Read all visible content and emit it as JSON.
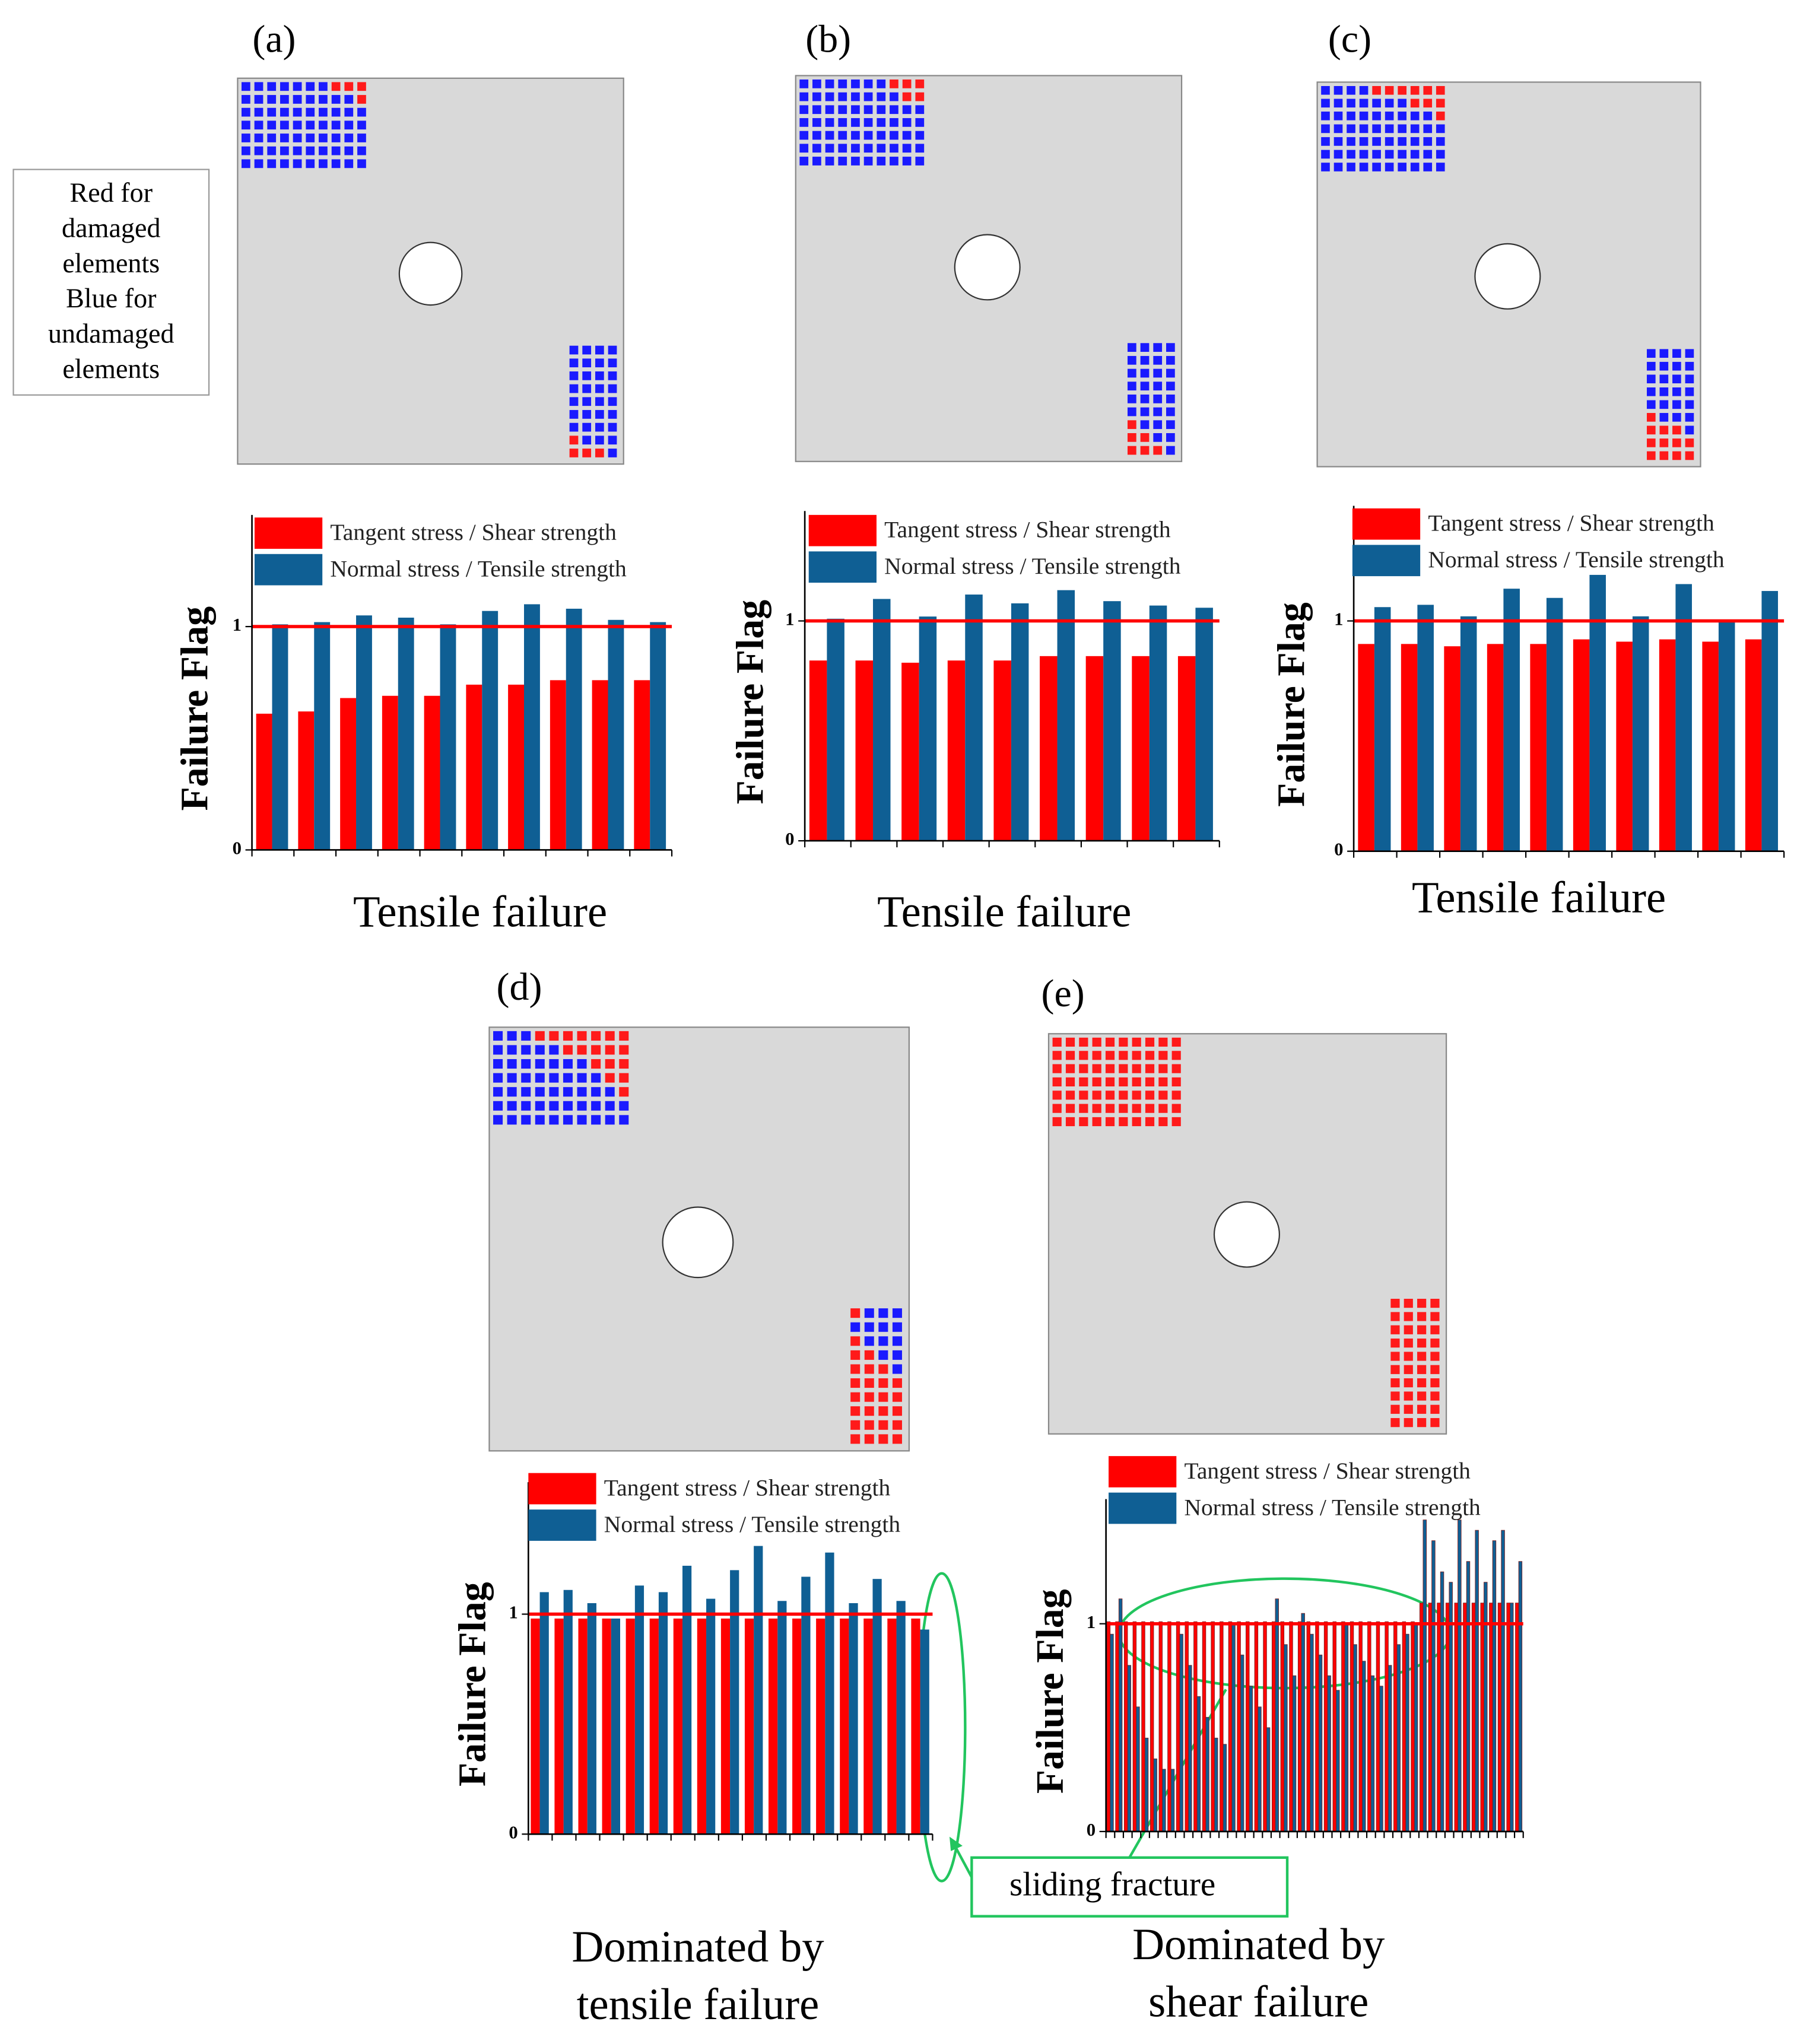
{
  "legend_note": {
    "lines": [
      "Red for",
      "damaged",
      "elements",
      "Blue for",
      "undamaged",
      "elements"
    ]
  },
  "annotation": {
    "text": "sliding fracture"
  },
  "panels": [
    {
      "label": "(a)",
      "caption": [
        "Tensile failure"
      ],
      "mesh": {
        "top": [
          [
            0,
            0,
            0,
            0,
            0,
            0,
            0,
            1,
            1,
            1
          ],
          [
            0,
            0,
            0,
            0,
            0,
            0,
            0,
            0,
            0,
            1
          ],
          [
            0,
            0,
            0,
            0,
            0,
            0,
            0,
            0,
            0,
            0
          ],
          [
            0,
            0,
            0,
            0,
            0,
            0,
            0,
            0,
            0,
            0
          ],
          [
            0,
            0,
            0,
            0,
            0,
            0,
            0,
            0,
            0,
            0
          ],
          [
            0,
            0,
            0,
            0,
            0,
            0,
            0,
            0,
            0,
            0
          ],
          [
            0,
            0,
            0,
            0,
            0,
            0,
            0,
            0,
            0,
            0
          ]
        ],
        "bottom": [
          [
            0,
            0,
            0,
            0
          ],
          [
            0,
            0,
            0,
            0
          ],
          [
            0,
            0,
            0,
            0
          ],
          [
            0,
            0,
            0,
            0
          ],
          [
            0,
            0,
            0,
            0
          ],
          [
            0,
            0,
            0,
            0
          ],
          [
            0,
            0,
            0,
            0
          ],
          [
            1,
            0,
            0,
            0
          ],
          [
            1,
            1,
            1,
            0
          ]
        ]
      }
    },
    {
      "label": "(b)",
      "caption": [
        "Tensile failure"
      ],
      "mesh": {
        "top": [
          [
            0,
            0,
            0,
            0,
            0,
            0,
            0,
            1,
            1,
            1
          ],
          [
            0,
            0,
            0,
            0,
            0,
            0,
            0,
            0,
            1,
            1
          ],
          [
            0,
            0,
            0,
            0,
            0,
            0,
            0,
            0,
            0,
            0
          ],
          [
            0,
            0,
            0,
            0,
            0,
            0,
            0,
            0,
            0,
            0
          ],
          [
            0,
            0,
            0,
            0,
            0,
            0,
            0,
            0,
            0,
            0
          ],
          [
            0,
            0,
            0,
            0,
            0,
            0,
            0,
            0,
            0,
            0
          ],
          [
            0,
            0,
            0,
            0,
            0,
            0,
            0,
            0,
            0,
            0
          ]
        ],
        "bottom": [
          [
            0,
            0,
            0,
            0
          ],
          [
            0,
            0,
            0,
            0
          ],
          [
            0,
            0,
            0,
            0
          ],
          [
            0,
            0,
            0,
            0
          ],
          [
            0,
            0,
            0,
            0
          ],
          [
            0,
            0,
            0,
            0
          ],
          [
            1,
            0,
            0,
            0
          ],
          [
            1,
            1,
            0,
            0
          ],
          [
            1,
            1,
            1,
            0
          ]
        ]
      }
    },
    {
      "label": "(c)",
      "caption": [
        "Tensile failure"
      ],
      "mesh": {
        "top": [
          [
            0,
            0,
            0,
            0,
            1,
            1,
            1,
            1,
            1,
            1
          ],
          [
            0,
            0,
            0,
            0,
            0,
            0,
            0,
            1,
            1,
            1
          ],
          [
            0,
            0,
            0,
            0,
            0,
            0,
            0,
            0,
            0,
            1
          ],
          [
            0,
            0,
            0,
            0,
            0,
            0,
            0,
            0,
            0,
            0
          ],
          [
            0,
            0,
            0,
            0,
            0,
            0,
            0,
            0,
            0,
            0
          ],
          [
            0,
            0,
            0,
            0,
            0,
            0,
            0,
            0,
            0,
            0
          ],
          [
            0,
            0,
            0,
            0,
            0,
            0,
            0,
            0,
            0,
            0
          ]
        ],
        "bottom": [
          [
            0,
            0,
            0,
            0
          ],
          [
            0,
            0,
            0,
            0
          ],
          [
            0,
            0,
            0,
            0
          ],
          [
            0,
            0,
            0,
            0
          ],
          [
            0,
            0,
            0,
            0
          ],
          [
            1,
            0,
            0,
            0
          ],
          [
            1,
            1,
            1,
            0
          ],
          [
            1,
            1,
            1,
            1
          ],
          [
            1,
            1,
            1,
            1
          ]
        ]
      }
    },
    {
      "label": "(d)",
      "caption": [
        "Dominated by",
        "tensile failure"
      ],
      "mesh": {
        "top": [
          [
            0,
            0,
            0,
            1,
            1,
            1,
            1,
            1,
            1,
            1
          ],
          [
            0,
            0,
            0,
            0,
            0,
            1,
            1,
            1,
            1,
            1
          ],
          [
            0,
            0,
            0,
            0,
            0,
            0,
            0,
            1,
            1,
            1
          ],
          [
            0,
            0,
            0,
            0,
            0,
            0,
            0,
            0,
            1,
            1
          ],
          [
            0,
            0,
            0,
            0,
            0,
            0,
            0,
            0,
            0,
            1
          ],
          [
            0,
            0,
            0,
            0,
            0,
            0,
            0,
            0,
            0,
            0
          ],
          [
            0,
            0,
            0,
            0,
            0,
            0,
            0,
            0,
            0,
            0
          ]
        ],
        "bottom": [
          [
            1,
            0,
            0,
            0
          ],
          [
            0,
            0,
            0,
            0
          ],
          [
            1,
            0,
            0,
            0
          ],
          [
            1,
            1,
            0,
            0
          ],
          [
            1,
            1,
            1,
            0
          ],
          [
            1,
            1,
            1,
            1
          ],
          [
            1,
            1,
            1,
            1
          ],
          [
            1,
            1,
            1,
            1
          ],
          [
            1,
            1,
            1,
            1
          ],
          [
            1,
            1,
            1,
            1
          ]
        ]
      }
    },
    {
      "label": "(e)",
      "caption": [
        "Dominated by",
        "shear failure"
      ],
      "mesh": {
        "top": [
          [
            1,
            1,
            1,
            1,
            1,
            1,
            1,
            1,
            1,
            1
          ],
          [
            1,
            1,
            1,
            1,
            1,
            1,
            1,
            1,
            1,
            1
          ],
          [
            1,
            1,
            1,
            1,
            1,
            1,
            1,
            1,
            1,
            1
          ],
          [
            1,
            1,
            1,
            1,
            1,
            1,
            1,
            1,
            1,
            1
          ],
          [
            1,
            1,
            1,
            1,
            1,
            1,
            1,
            1,
            1,
            1
          ],
          [
            1,
            1,
            1,
            1,
            1,
            1,
            1,
            1,
            1,
            1
          ],
          [
            1,
            1,
            1,
            1,
            1,
            1,
            1,
            1,
            1,
            1
          ]
        ],
        "bottom": [
          [
            1,
            1,
            1,
            1
          ],
          [
            1,
            1,
            1,
            1
          ],
          [
            1,
            1,
            1,
            1
          ],
          [
            1,
            1,
            1,
            1
          ],
          [
            1,
            1,
            1,
            1
          ],
          [
            1,
            1,
            1,
            1
          ],
          [
            1,
            1,
            1,
            1
          ],
          [
            1,
            1,
            1,
            1
          ],
          [
            1,
            1,
            1,
            1
          ],
          [
            1,
            1,
            1,
            1
          ]
        ]
      }
    }
  ],
  "chart_data": [
    {
      "type": "bar",
      "ylabel": "Failure Flag",
      "ylim": [
        0,
        1.5
      ],
      "yticks": [
        0,
        1
      ],
      "hline": 1,
      "hline_color": "#ff0000",
      "categories": [
        null,
        null,
        null,
        null,
        null,
        null,
        null,
        null,
        null,
        null
      ],
      "series": [
        {
          "name": "Tangent stress / Shear strength",
          "color": "#ff0000",
          "values": [
            0.61,
            0.62,
            0.68,
            0.69,
            0.69,
            0.74,
            0.74,
            0.76,
            0.76,
            0.76
          ]
        },
        {
          "name": "Normal stress / Tensile strength",
          "color": "#0f5f94",
          "values": [
            1.01,
            1.02,
            1.05,
            1.04,
            1.01,
            1.07,
            1.1,
            1.08,
            1.03,
            1.02
          ]
        }
      ]
    },
    {
      "type": "bar",
      "ylabel": "Failure Flag",
      "ylim": [
        0,
        1.5
      ],
      "yticks": [
        0,
        1
      ],
      "hline": 1,
      "hline_color": "#ff0000",
      "categories": [
        null,
        null,
        null,
        null,
        null,
        null,
        null,
        null,
        null
      ],
      "series": [
        {
          "name": "Tangent stress / Shear strength",
          "color": "#ff0000",
          "values": [
            0.82,
            0.82,
            0.81,
            0.82,
            0.82,
            0.84,
            0.84,
            0.84,
            0.84
          ]
        },
        {
          "name": "Normal stress / Tensile strength",
          "color": "#0f5f94",
          "values": [
            1.01,
            1.1,
            1.02,
            1.12,
            1.08,
            1.14,
            1.09,
            1.07,
            1.06
          ]
        }
      ]
    },
    {
      "type": "bar",
      "ylabel": "Failure Flag",
      "ylim": [
        0,
        1.5
      ],
      "yticks": [
        0,
        1
      ],
      "hline": 1,
      "hline_color": "#ff0000",
      "categories": [
        null,
        null,
        null,
        null,
        null,
        null,
        null,
        null,
        null,
        null
      ],
      "series": [
        {
          "name": "Tangent stress / Shear strength",
          "color": "#ff0000",
          "values": [
            0.9,
            0.9,
            0.89,
            0.9,
            0.9,
            0.92,
            0.91,
            0.92,
            0.91,
            0.92
          ]
        },
        {
          "name": "Normal stress / Tensile strength",
          "color": "#0f5f94",
          "values": [
            1.06,
            1.07,
            1.02,
            1.14,
            1.1,
            1.2,
            1.02,
            1.16,
            1.0,
            1.13
          ]
        }
      ]
    },
    {
      "type": "bar",
      "ylabel": "Failure Flag",
      "ylim": [
        0,
        1.6
      ],
      "yticks": [
        0,
        1
      ],
      "hline": 1,
      "hline_color": "#ff0000",
      "categories": [
        null,
        null,
        null,
        null,
        null,
        null,
        null,
        null,
        null,
        null,
        null,
        null,
        null,
        null,
        null,
        null,
        null
      ],
      "series": [
        {
          "name": "Tangent stress / Shear strength",
          "color": "#ff0000",
          "values": [
            0.98,
            0.98,
            0.98,
            0.98,
            0.98,
            0.98,
            0.98,
            0.98,
            0.98,
            0.98,
            0.98,
            0.98,
            0.98,
            0.98,
            0.98,
            0.98,
            0.98
          ]
        },
        {
          "name": "Normal stress / Tensile strength",
          "color": "#0f5f94",
          "values": [
            1.1,
            1.11,
            1.05,
            0.98,
            1.13,
            1.1,
            1.22,
            1.07,
            1.2,
            1.31,
            1.06,
            1.17,
            1.28,
            1.05,
            1.16,
            1.06,
            0.93
          ]
        }
      ]
    },
    {
      "type": "bar",
      "ylabel": "Failure Flag",
      "ylim": [
        0,
        1.6
      ],
      "yticks": [
        0,
        1
      ],
      "hline": 1,
      "hline_color": "#ff0000",
      "categories": [
        null,
        null,
        null,
        null,
        null,
        null,
        null,
        null,
        null,
        null,
        null,
        null,
        null,
        null,
        null,
        null,
        null,
        null,
        null,
        null,
        null,
        null,
        null,
        null,
        null,
        null,
        null,
        null,
        null,
        null,
        null,
        null,
        null,
        null,
        null,
        null,
        null,
        null,
        null,
        null,
        null,
        null,
        null,
        null,
        null,
        null,
        null,
        null
      ],
      "series": [
        {
          "name": "Tangent stress / Shear strength",
          "color": "#ff0000",
          "values": [
            1.01,
            1.01,
            1.01,
            1.01,
            1.01,
            1.01,
            1.01,
            1.01,
            1.01,
            1.01,
            1.01,
            1.01,
            1.01,
            1.01,
            1.01,
            1.01,
            1.01,
            1.01,
            1.01,
            1.01,
            1.01,
            1.01,
            1.01,
            1.01,
            1.01,
            1.01,
            1.01,
            1.01,
            1.01,
            1.01,
            1.01,
            1.01,
            1.01,
            1.01,
            1.01,
            1.01,
            1.1,
            1.1,
            1.1,
            1.1,
            1.1,
            1.1,
            1.1,
            1.1,
            1.1,
            1.1,
            1.1,
            1.1
          ]
        },
        {
          "name": "Normal stress / Tensile strength",
          "color": "#0f5f94",
          "values": [
            0.95,
            1.12,
            0.8,
            0.6,
            0.45,
            0.35,
            0.3,
            0.3,
            0.95,
            0.8,
            0.65,
            0.55,
            0.45,
            0.42,
            1.0,
            0.85,
            0.7,
            0.6,
            0.5,
            1.12,
            0.9,
            0.75,
            1.05,
            0.95,
            0.85,
            0.75,
            0.68,
            1.0,
            0.9,
            0.82,
            0.75,
            0.7,
            0.8,
            0.9,
            0.95,
            1.0,
            1.5,
            1.4,
            1.25,
            1.2,
            1.5,
            1.3,
            1.45,
            1.2,
            1.4,
            1.45,
            1.1,
            1.3
          ]
        }
      ]
    }
  ]
}
